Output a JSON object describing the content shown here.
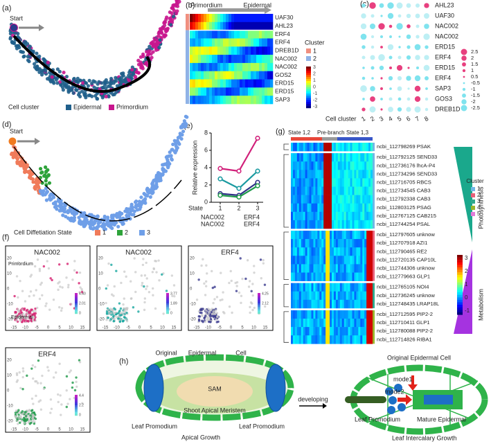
{
  "panel_labels": [
    "(a)",
    "(b)",
    "(c)",
    "(d)",
    "(e)",
    "(f)",
    "(g)",
    "(h)"
  ],
  "panel_a": {
    "start": "Start",
    "legend_title": "Cell cluster",
    "clusters": [
      {
        "name": "Epidermal",
        "color": "#1f5f8b"
      },
      {
        "name": "Primordium",
        "color": "#c8168e"
      }
    ]
  },
  "panel_b": {
    "left_label": "Primordium",
    "right_label": "Epidermal",
    "genes": [
      "UAF30",
      "AHL23",
      "ERF4",
      "ERF4",
      "DREB1D",
      "NAC002",
      "NAC002",
      "GOS2",
      "ERD15",
      "ERD15",
      "SAP3"
    ],
    "legend_title": "Cluster",
    "clusters": [
      {
        "name": "1",
        "color": "#f08f7f"
      },
      {
        "name": "2",
        "color": "#8fb2e6"
      }
    ],
    "colorbar_labels": [
      "3",
      "2",
      "1",
      "0",
      "-1",
      "-2",
      "-3"
    ]
  },
  "panel_c": {
    "genes": [
      "AHL23",
      "UAF30",
      "NAC002",
      "NAC002",
      "ERD15",
      "ERF4",
      "ERD15",
      "ERF4",
      "SAP3",
      "GOS3",
      "DREB1D"
    ],
    "x_title": "Cell cluster",
    "x_labels": [
      "1",
      "2",
      "3",
      "4",
      "5",
      "6",
      "7",
      "8"
    ],
    "legend_labels": [
      "2.5",
      "2",
      "1.5",
      "1",
      "0.5",
      "-0.5",
      "-1",
      "-1.5",
      "-2",
      "-2.5"
    ]
  },
  "panel_d": {
    "start": "Start",
    "legend_title": "Cell Diffetiation State",
    "states": [
      {
        "name": "1",
        "color": "#f07b5a"
      },
      {
        "name": "2",
        "color": "#2ea33a"
      },
      {
        "name": "3",
        "color": "#6f9fe8"
      }
    ]
  },
  "chart_data": {
    "type": "line",
    "y_label": "Relative  expression",
    "x_label": "State",
    "categories": [
      "1",
      "2",
      "3"
    ],
    "series": [
      {
        "name": "NAC002",
        "color": "#d1207a",
        "values": [
          3.9,
          3.6,
          7.4
        ]
      },
      {
        "name": "NAC002",
        "color": "#1a9aa0",
        "values": [
          2.7,
          1.6,
          3.6
        ]
      },
      {
        "name": "ERF4",
        "color": "#2e2f86",
        "values": [
          1.0,
          0.8,
          2.3
        ]
      },
      {
        "name": "ERF4",
        "color": "#1f9a4a",
        "values": [
          0.8,
          0.6,
          1.9
        ]
      }
    ],
    "ylim": [
      0,
      8
    ],
    "yticks": [
      0,
      2,
      4,
      6,
      8
    ]
  },
  "panel_f": {
    "plots": [
      {
        "title": "NAC002",
        "color": "#d61f6f",
        "colorbar_labels": [
          "4.40",
          "2.01",
          "0"
        ],
        "annotations": [
          "Primordium",
          "Epidermal"
        ]
      },
      {
        "title": "NAC002",
        "color": "#19a7a0",
        "colorbar_labels": [
          "3.77",
          "1.89",
          "0"
        ]
      },
      {
        "title": "ERF4",
        "color": "#3b3b8f",
        "colorbar_labels": [
          "4.25",
          "2.12"
        ]
      },
      {
        "title": "ERF4",
        "color": "#1f9a4a",
        "colorbar_labels": [
          "4.4",
          "2.2",
          "0"
        ]
      }
    ],
    "xticks": [
      "-15",
      "-10",
      "-5",
      "0",
      "5",
      "10",
      "15"
    ],
    "yticks": [
      "20",
      "10",
      "0",
      "-10",
      "-20"
    ]
  },
  "panel_g": {
    "header": [
      "State 1,2",
      "Pre-branch",
      "State 1,3"
    ],
    "gene_blocks": [
      [
        "ncbi_112798269 PSAK"
      ],
      [
        "ncbi_112792125 SEND33",
        "ncbi_112736176 lhcA-P4",
        "ncbi_112734296 SEND33",
        "ncbi_112716705 RBCS",
        "ncbi_112734545 CAB3",
        "ncbi_112792338 CAB3",
        "ncbi_112803125 PSAG",
        "ncbi_112767125 CAB215",
        "ncbi_112744254 PSAL"
      ],
      [
        "ncbi_112797605 unknow",
        "ncbi_112707918 AZI1",
        "ncbi_112790465 RE2",
        "ncbi_112720135 CAP10L",
        "ncbi_112744306 unknow",
        "ncbi_112779663 GLP1"
      ],
      [
        "ncbi_112765105 NOI4",
        "ncbi_112736245 unknow",
        "ncbi_112748435 LRAP18L"
      ],
      [
        "ncbi_112712595 PIP2-2",
        "ncbi_112710411 GLP1",
        "ncbi_112780088 PIP2-2",
        "ncbi_112714826 RIBA1"
      ]
    ],
    "side_labels": [
      "Photosynthesis",
      "Metabolism"
    ],
    "legend_title": "Cluster",
    "clusters": [
      {
        "name": "1",
        "color": "#6fb7e6"
      },
      {
        "name": "2",
        "color": "#e8607a"
      },
      {
        "name": "3",
        "color": "#2fa88c"
      },
      {
        "name": "4",
        "color": "#9ab52c"
      },
      {
        "name": "5",
        "color": "#e07ad8"
      }
    ],
    "colorbar_labels": [
      "3",
      "2",
      "1",
      "0",
      "-1"
    ]
  },
  "panel_h": {
    "left": {
      "title_words": [
        "Original",
        "Epidermal",
        "Cell"
      ],
      "sam": "SAM",
      "meristem": "Shoot Apical Meristem",
      "leaf_left": "Leaf Promodium",
      "leaf_right": "Leaf Promodium",
      "caption": "Apical Growth"
    },
    "arrow": "developing",
    "right": {
      "title": "Original Epidermal Cell",
      "mode1": "mode1",
      "mode2": "mode2",
      "leaf": "Leaf Promodium",
      "mature": "Mature Epidermal",
      "caption": "Leaf Intercalary Growth"
    }
  }
}
